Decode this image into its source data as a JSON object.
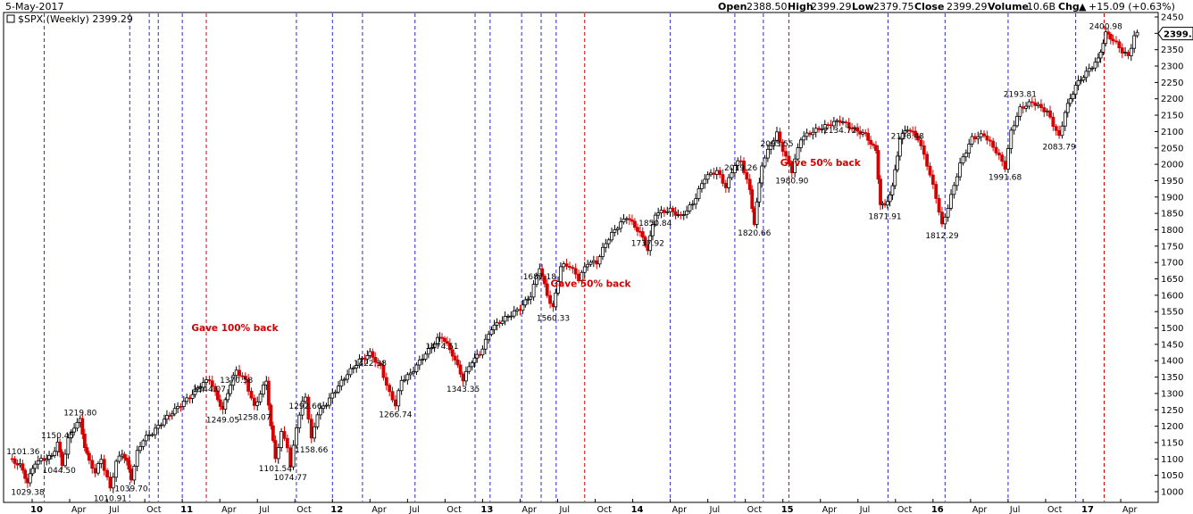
{
  "header": {
    "date": "5-May-2017",
    "symbol": "$SPX (Weekly) 2399.29",
    "open_label": "Open",
    "open_value": "2388.50",
    "high_label": "High",
    "high_value": "2399.29",
    "low_label": "Low",
    "low_value": "2379.75",
    "close_label": "Close",
    "close_value": "2399.29",
    "volume_label": "Volume",
    "volume_value": "10.6B",
    "chg_label": "Chg",
    "chg_value": "+15.09 (+0.63%)",
    "chg_arrow": "▲"
  },
  "colors": {
    "up": "#000000",
    "down": "#d40000",
    "blue_line": "#2b2bd6",
    "red_line": "#d40000"
  },
  "chart_data": {
    "type": "line",
    "ylim": [
      980,
      2470
    ],
    "y_ticks": [
      1000,
      1050,
      1100,
      1150,
      1200,
      1250,
      1300,
      1350,
      1400,
      1450,
      1500,
      1550,
      1600,
      1650,
      1700,
      1750,
      1800,
      1850,
      1900,
      1950,
      2000,
      2050,
      2100,
      2150,
      2200,
      2250,
      2300,
      2350,
      2400,
      2450
    ],
    "last_price": "2399.29",
    "x_labels": [
      {
        "t": "10",
        "x": 2010.0,
        "bold": true
      },
      {
        "t": "Apr",
        "x": 2010.25
      },
      {
        "t": "Jul",
        "x": 2010.5
      },
      {
        "t": "Oct",
        "x": 2010.75
      },
      {
        "t": "11",
        "x": 2011.0,
        "bold": true
      },
      {
        "t": "Apr",
        "x": 2011.25
      },
      {
        "t": "Jul",
        "x": 2011.5
      },
      {
        "t": "Oct",
        "x": 2011.75
      },
      {
        "t": "12",
        "x": 2012.0,
        "bold": true
      },
      {
        "t": "Apr",
        "x": 2012.25
      },
      {
        "t": "Jul",
        "x": 2012.5
      },
      {
        "t": "Oct",
        "x": 2012.75
      },
      {
        "t": "13",
        "x": 2013.0,
        "bold": true
      },
      {
        "t": "Apr",
        "x": 2013.25
      },
      {
        "t": "Jul",
        "x": 2013.5
      },
      {
        "t": "Oct",
        "x": 2013.75
      },
      {
        "t": "14",
        "x": 2014.0,
        "bold": true
      },
      {
        "t": "Apr",
        "x": 2014.25
      },
      {
        "t": "Jul",
        "x": 2014.5
      },
      {
        "t": "Oct",
        "x": 2014.75
      },
      {
        "t": "15",
        "x": 2015.0,
        "bold": true
      },
      {
        "t": "Apr",
        "x": 2015.25
      },
      {
        "t": "Jul",
        "x": 2015.5
      },
      {
        "t": "Oct",
        "x": 2015.75
      },
      {
        "t": "16",
        "x": 2016.0,
        "bold": true
      },
      {
        "t": "Apr",
        "x": 2016.25
      },
      {
        "t": "Jul",
        "x": 2016.5
      },
      {
        "t": "Oct",
        "x": 2016.75
      },
      {
        "t": "17",
        "x": 2017.0,
        "bold": true
      },
      {
        "t": "Apr",
        "x": 2017.25
      }
    ],
    "series": [
      {
        "points": [
          [
            2009.85,
            1101
          ],
          [
            2009.92,
            1080
          ],
          [
            2009.97,
            1029
          ],
          [
            2010.02,
            1090
          ],
          [
            2010.08,
            1100
          ],
          [
            2010.13,
            1108
          ],
          [
            2010.17,
            1150
          ],
          [
            2010.2,
            1080
          ],
          [
            2010.24,
            1160
          ],
          [
            2010.28,
            1200
          ],
          [
            2010.32,
            1219
          ],
          [
            2010.35,
            1140
          ],
          [
            2010.38,
            1090
          ],
          [
            2010.42,
            1060
          ],
          [
            2010.46,
            1100
          ],
          [
            2010.5,
            1040
          ],
          [
            2010.52,
            1010
          ],
          [
            2010.56,
            1090
          ],
          [
            2010.6,
            1120
          ],
          [
            2010.63,
            1090
          ],
          [
            2010.66,
            1040
          ],
          [
            2010.7,
            1120
          ],
          [
            2010.74,
            1160
          ],
          [
            2010.8,
            1180
          ],
          [
            2010.88,
            1220
          ],
          [
            2010.95,
            1250
          ],
          [
            2011.05,
            1290
          ],
          [
            2011.12,
            1325
          ],
          [
            2011.18,
            1344
          ],
          [
            2011.22,
            1300
          ],
          [
            2011.27,
            1249
          ],
          [
            2011.32,
            1330
          ],
          [
            2011.36,
            1370
          ],
          [
            2011.42,
            1340
          ],
          [
            2011.48,
            1258
          ],
          [
            2011.52,
            1300
          ],
          [
            2011.56,
            1340
          ],
          [
            2011.59,
            1200
          ],
          [
            2011.62,
            1101
          ],
          [
            2011.66,
            1180
          ],
          [
            2011.7,
            1140
          ],
          [
            2011.72,
            1074
          ],
          [
            2011.76,
            1200
          ],
          [
            2011.8,
            1270
          ],
          [
            2011.82,
            1292
          ],
          [
            2011.86,
            1158
          ],
          [
            2011.9,
            1240
          ],
          [
            2011.96,
            1270
          ],
          [
            2012.02,
            1310
          ],
          [
            2012.1,
            1360
          ],
          [
            2012.18,
            1400
          ],
          [
            2012.25,
            1422
          ],
          [
            2012.32,
            1380
          ],
          [
            2012.38,
            1300
          ],
          [
            2012.42,
            1266
          ],
          [
            2012.46,
            1340
          ],
          [
            2012.52,
            1360
          ],
          [
            2012.6,
            1410
          ],
          [
            2012.7,
            1465
          ],
          [
            2012.73,
            1474
          ],
          [
            2012.8,
            1420
          ],
          [
            2012.87,
            1343
          ],
          [
            2012.93,
            1400
          ],
          [
            2012.98,
            1420
          ],
          [
            2013.06,
            1500
          ],
          [
            2013.15,
            1530
          ],
          [
            2013.25,
            1560
          ],
          [
            2013.32,
            1600
          ],
          [
            2013.38,
            1687
          ],
          [
            2013.43,
            1600
          ],
          [
            2013.47,
            1560
          ],
          [
            2013.52,
            1690
          ],
          [
            2013.58,
            1690
          ],
          [
            2013.64,
            1650
          ],
          [
            2013.7,
            1700
          ],
          [
            2013.76,
            1700
          ],
          [
            2013.82,
            1760
          ],
          [
            2013.88,
            1800
          ],
          [
            2013.96,
            1840
          ],
          [
            2014.05,
            1790
          ],
          [
            2014.1,
            1740
          ],
          [
            2014.15,
            1850
          ],
          [
            2014.25,
            1860
          ],
          [
            2014.32,
            1840
          ],
          [
            2014.4,
            1880
          ],
          [
            2014.48,
            1960
          ],
          [
            2014.56,
            1980
          ],
          [
            2014.62,
            1930
          ],
          [
            2014.68,
            2000
          ],
          [
            2014.72,
            2010
          ],
          [
            2014.78,
            1920
          ],
          [
            2014.81,
            1820
          ],
          [
            2014.86,
            2000
          ],
          [
            2014.92,
            2060
          ],
          [
            2014.96,
            2093
          ],
          [
            2015.02,
            2020
          ],
          [
            2015.06,
            1980
          ],
          [
            2015.12,
            2080
          ],
          [
            2015.2,
            2100
          ],
          [
            2015.3,
            2120
          ],
          [
            2015.38,
            2134
          ],
          [
            2015.46,
            2110
          ],
          [
            2015.55,
            2090
          ],
          [
            2015.62,
            2040
          ],
          [
            2015.65,
            1880
          ],
          [
            2015.68,
            1871
          ],
          [
            2015.73,
            1930
          ],
          [
            2015.78,
            2080
          ],
          [
            2015.83,
            2110
          ],
          [
            2015.9,
            2080
          ],
          [
            2015.96,
            2000
          ],
          [
            2016.02,
            1900
          ],
          [
            2016.06,
            1812
          ],
          [
            2016.1,
            1870
          ],
          [
            2016.18,
            2000
          ],
          [
            2016.26,
            2080
          ],
          [
            2016.34,
            2090
          ],
          [
            2016.42,
            2040
          ],
          [
            2016.48,
            1991
          ],
          [
            2016.52,
            2100
          ],
          [
            2016.58,
            2170
          ],
          [
            2016.66,
            2190
          ],
          [
            2016.76,
            2160
          ],
          [
            2016.84,
            2083
          ],
          [
            2016.88,
            2160
          ],
          [
            2016.95,
            2240
          ],
          [
            2017.02,
            2280
          ],
          [
            2017.1,
            2320
          ],
          [
            2017.15,
            2400
          ],
          [
            2017.2,
            2380
          ],
          [
            2017.26,
            2345
          ],
          [
            2017.3,
            2330
          ],
          [
            2017.34,
            2390
          ],
          [
            2017.36,
            2399
          ]
        ]
      }
    ],
    "annotations": [
      {
        "t": "1101.36",
        "x": 2009.94,
        "y": 1101
      },
      {
        "t": "1029.38",
        "x": 2009.97,
        "y": 1029
      },
      {
        "t": "1150.45",
        "x": 2010.17,
        "y": 1150
      },
      {
        "t": "1044.50",
        "x": 2010.18,
        "y": 1044
      },
      {
        "t": "1219.80",
        "x": 2010.32,
        "y": 1219
      },
      {
        "t": "1010.91",
        "x": 2010.52,
        "y": 1010
      },
      {
        "t": "1039.70",
        "x": 2010.66,
        "y": 1039
      },
      {
        "t": "1344.07",
        "x": 2011.18,
        "y": 1344
      },
      {
        "t": "1249.05",
        "x": 2011.27,
        "y": 1249
      },
      {
        "t": "1370.58",
        "x": 2011.36,
        "y": 1370
      },
      {
        "t": "1258.07",
        "x": 2011.48,
        "y": 1258
      },
      {
        "t": "1101.54",
        "x": 2011.62,
        "y": 1101
      },
      {
        "t": "1074.77",
        "x": 2011.72,
        "y": 1074
      },
      {
        "t": "1292.66",
        "x": 2011.82,
        "y": 1292
      },
      {
        "t": "1158.66",
        "x": 2011.86,
        "y": 1158
      },
      {
        "t": "1422.38",
        "x": 2012.25,
        "y": 1422
      },
      {
        "t": "1266.74",
        "x": 2012.42,
        "y": 1266
      },
      {
        "t": "1474.51",
        "x": 2012.73,
        "y": 1474
      },
      {
        "t": "1343.35",
        "x": 2012.87,
        "y": 1343
      },
      {
        "t": "1687.18",
        "x": 2013.38,
        "y": 1687
      },
      {
        "t": "1560.33",
        "x": 2013.47,
        "y": 1560
      },
      {
        "t": "1850.84",
        "x": 2014.15,
        "y": 1850
      },
      {
        "t": "1737.92",
        "x": 2014.1,
        "y": 1737
      },
      {
        "t": "2019.26",
        "x": 2014.72,
        "y": 2019
      },
      {
        "t": "1820.66",
        "x": 2014.81,
        "y": 1820
      },
      {
        "t": "2093.55",
        "x": 2014.96,
        "y": 2093
      },
      {
        "t": "1980.90",
        "x": 2015.06,
        "y": 1980
      },
      {
        "t": "2134.72",
        "x": 2015.38,
        "y": 2134
      },
      {
        "t": "1871.91",
        "x": 2015.68,
        "y": 1871
      },
      {
        "t": "2116.48",
        "x": 2015.83,
        "y": 2116
      },
      {
        "t": "1812.29",
        "x": 2016.06,
        "y": 1812
      },
      {
        "t": "1991.68",
        "x": 2016.48,
        "y": 1991
      },
      {
        "t": "2193.81",
        "x": 2016.58,
        "y": 2193
      },
      {
        "t": "2083.79",
        "x": 2016.84,
        "y": 2083
      },
      {
        "t": "2400.98",
        "x": 2017.15,
        "y": 2400
      }
    ],
    "text_notes": [
      {
        "t": "Gave 100% back",
        "x": 2011.35,
        "y": 1490
      },
      {
        "t": "Gave 50% back",
        "x": 2013.72,
        "y": 1625
      },
      {
        "t": "Gave 50% back",
        "x": 2015.25,
        "y": 1995
      }
    ],
    "blue_lines": [
      2010.08,
      2010.65,
      2010.78,
      2010.84,
      2011.0,
      2011.76,
      2012.0,
      2012.2,
      2012.55,
      2012.95,
      2013.05,
      2013.26,
      2013.39,
      2013.49,
      2014.25,
      2014.68,
      2014.87,
      2015.7,
      2016.08,
      2016.5,
      2016.95
    ],
    "red_lines": [
      2011.16,
      2013.68,
      2015.04,
      2017.14
    ]
  }
}
